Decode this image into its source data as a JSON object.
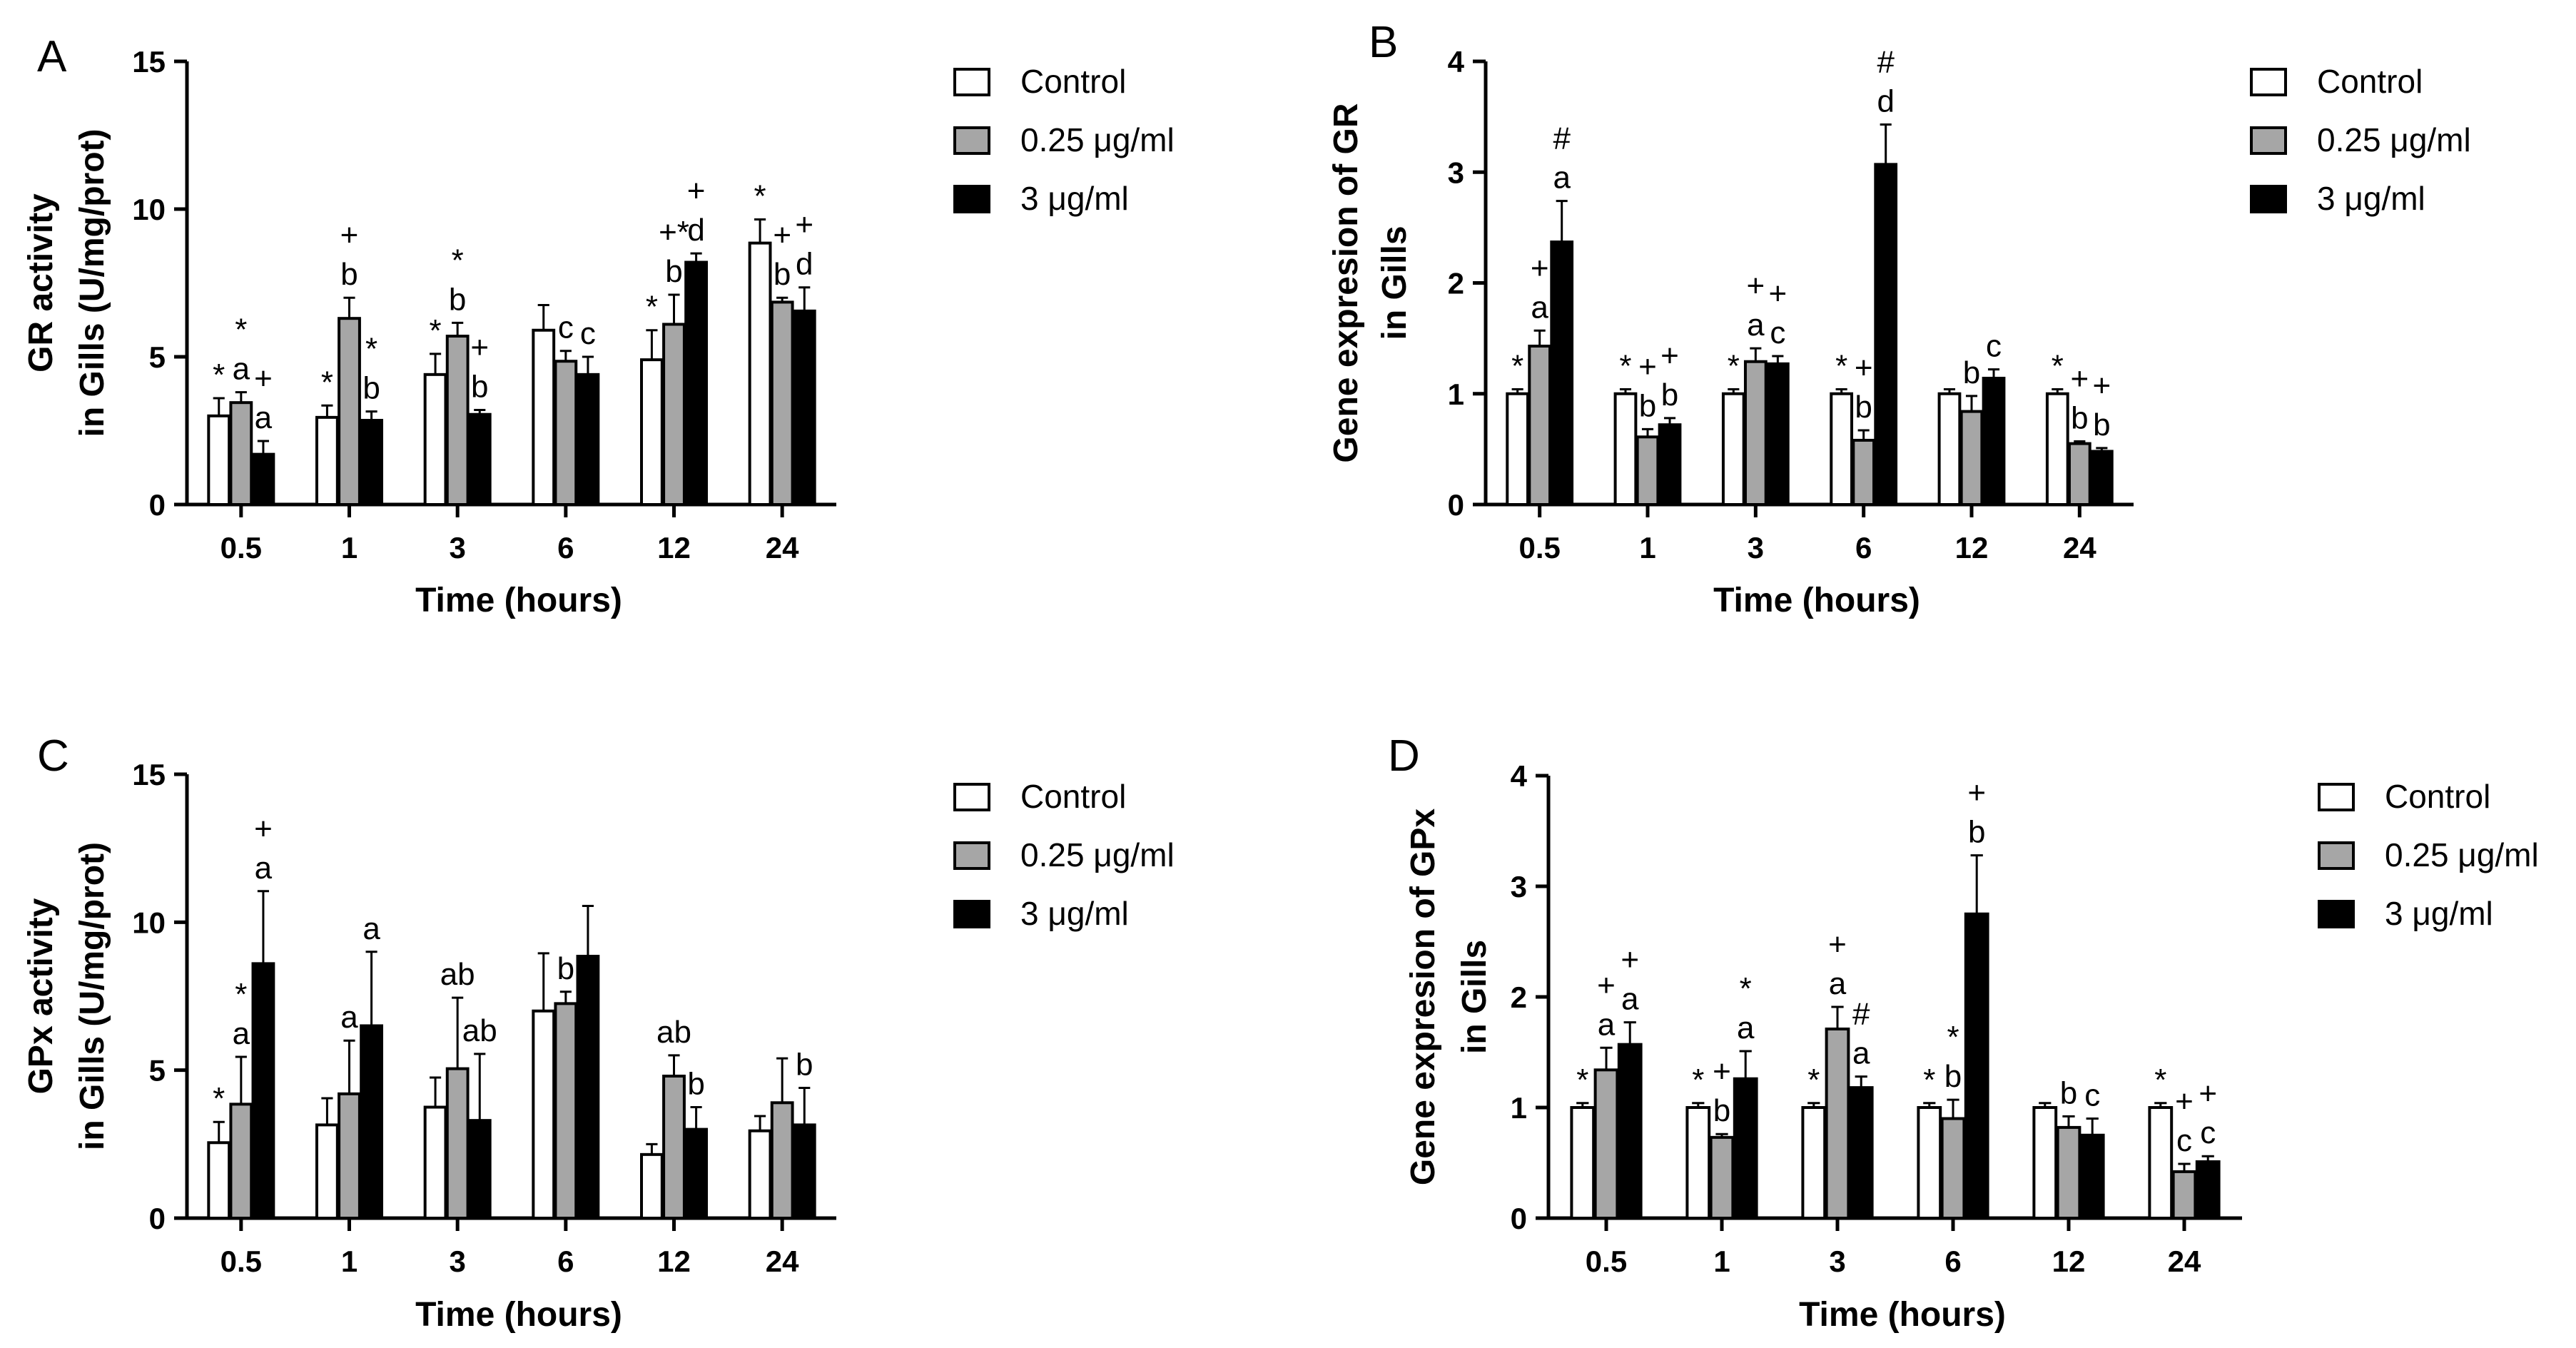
{
  "legend": {
    "series_names": [
      "Control",
      "0.25 μg/ml",
      "3 μg/ml"
    ],
    "series_colors": [
      "#ffffff",
      "#a6a6a6",
      "#000000"
    ]
  },
  "chart_data": [
    {
      "panel": "A",
      "type": "bar",
      "title": "",
      "xlabel": "Time (hours)",
      "ylabel_lines": [
        "GR activity",
        "in Gills (U/mg/prot)"
      ],
      "categories": [
        "0.5",
        "1",
        "3",
        "6",
        "12",
        "24"
      ],
      "ylim": [
        0,
        15
      ],
      "yticks": [
        0,
        5,
        10,
        15
      ],
      "series": [
        {
          "name": "Control",
          "values": [
            3.0,
            2.95,
            4.4,
            5.9,
            4.9,
            8.85
          ],
          "errors": [
            0.6,
            0.4,
            0.7,
            0.85,
            1.0,
            0.8
          ]
        },
        {
          "name": "0.25 μg/ml",
          "values": [
            3.45,
            6.3,
            5.7,
            4.85,
            6.1,
            6.85
          ],
          "errors": [
            0.35,
            0.7,
            0.45,
            0.35,
            1.0,
            0.15
          ]
        },
        {
          "name": "3 μg/ml",
          "values": [
            1.7,
            2.85,
            3.05,
            4.4,
            8.2,
            6.55
          ],
          "errors": [
            0.45,
            0.3,
            0.15,
            0.6,
            0.3,
            0.8
          ]
        }
      ],
      "annotations": [
        [
          [
            "*"
          ],
          [
            "*",
            "a"
          ],
          [
            "+",
            "a"
          ]
        ],
        [
          [
            "*"
          ],
          [
            "+",
            "b"
          ],
          [
            "*",
            "b"
          ]
        ],
        [
          [
            "*"
          ],
          [
            "*",
            "b"
          ],
          [
            "+",
            "b"
          ]
        ],
        [
          [],
          [
            "c"
          ],
          [
            "c"
          ]
        ],
        [
          [
            "*"
          ],
          [
            "+*",
            "b"
          ],
          [
            "+",
            "d"
          ]
        ],
        [
          [
            "*"
          ],
          [
            "+",
            "b"
          ],
          [
            "+",
            "d"
          ]
        ]
      ]
    },
    {
      "panel": "B",
      "type": "bar",
      "title": "",
      "xlabel": "Time (hours)",
      "ylabel_lines": [
        "Gene expresion of GR",
        "in Gills"
      ],
      "categories": [
        "0.5",
        "1",
        "3",
        "6",
        "12",
        "24"
      ],
      "ylim": [
        0,
        4
      ],
      "yticks": [
        0,
        1,
        2,
        3,
        4
      ],
      "series": [
        {
          "name": "Control",
          "values": [
            1.0,
            1.0,
            1.0,
            1.0,
            1.0,
            1.0
          ],
          "errors": [
            0.04,
            0.04,
            0.04,
            0.04,
            0.04,
            0.04
          ]
        },
        {
          "name": "0.25 μg/ml",
          "values": [
            1.43,
            0.61,
            1.29,
            0.58,
            0.84,
            0.55
          ],
          "errors": [
            0.14,
            0.07,
            0.12,
            0.09,
            0.14,
            0.02
          ]
        },
        {
          "name": "3 μg/ml",
          "values": [
            2.37,
            0.72,
            1.27,
            3.07,
            1.14,
            0.48
          ],
          "errors": [
            0.37,
            0.06,
            0.07,
            0.36,
            0.08,
            0.03
          ]
        }
      ],
      "annotations": [
        [
          [
            "*"
          ],
          [
            "+",
            "a"
          ],
          [
            "#",
            "a"
          ]
        ],
        [
          [
            "*"
          ],
          [
            "+",
            "b"
          ],
          [
            "+",
            "b"
          ]
        ],
        [
          [
            "*"
          ],
          [
            "+",
            "a"
          ],
          [
            "+",
            "c"
          ]
        ],
        [
          [
            "*"
          ],
          [
            "+",
            "b"
          ],
          [
            "#",
            "d"
          ]
        ],
        [
          [],
          [
            "b"
          ],
          [
            "c"
          ]
        ],
        [
          [
            "*"
          ],
          [
            "+",
            "b"
          ],
          [
            "+",
            "b"
          ]
        ]
      ]
    },
    {
      "panel": "C",
      "type": "bar",
      "title": "",
      "xlabel": "Time (hours)",
      "ylabel_lines": [
        "GPx activity",
        "in Gills (U/mg/prot)"
      ],
      "categories": [
        "0.5",
        "1",
        "3",
        "6",
        "12",
        "24"
      ],
      "ylim": [
        0,
        15
      ],
      "yticks": [
        0,
        5,
        10,
        15
      ],
      "series": [
        {
          "name": "Control",
          "values": [
            2.55,
            3.15,
            3.75,
            7.0,
            2.15,
            2.95
          ],
          "errors": [
            0.7,
            0.9,
            1.0,
            1.95,
            0.35,
            0.5
          ]
        },
        {
          "name": "0.25 μg/ml",
          "values": [
            3.85,
            4.2,
            5.05,
            7.25,
            4.8,
            3.9
          ],
          "errors": [
            1.6,
            1.8,
            2.4,
            0.4,
            0.7,
            1.5
          ]
        },
        {
          "name": "3 μg/ml",
          "values": [
            8.6,
            6.5,
            3.3,
            8.85,
            3.0,
            3.15
          ],
          "errors": [
            2.45,
            2.5,
            2.25,
            1.7,
            0.75,
            1.25
          ]
        }
      ],
      "annotations": [
        [
          [
            "*"
          ],
          [
            "*",
            "a"
          ],
          [
            "+",
            "a"
          ]
        ],
        [
          [],
          [
            "a"
          ],
          [
            "a"
          ]
        ],
        [
          [],
          [
            "ab"
          ],
          [
            "ab"
          ]
        ],
        [
          [],
          [
            "b"
          ],
          []
        ],
        [
          [],
          [
            "ab"
          ],
          [
            "b"
          ]
        ],
        [
          [],
          [],
          [
            "b"
          ]
        ]
      ]
    },
    {
      "panel": "D",
      "type": "bar",
      "title": "",
      "xlabel": "Time (hours)",
      "ylabel_lines": [
        "Gene expresion of GPx",
        "in Gills"
      ],
      "categories": [
        "0.5",
        "1",
        "3",
        "6",
        "12",
        "24"
      ],
      "ylim": [
        0,
        4
      ],
      "yticks": [
        0,
        1,
        2,
        3,
        4
      ],
      "series": [
        {
          "name": "Control",
          "values": [
            1.0,
            1.0,
            1.0,
            1.0,
            1.0,
            1.0
          ],
          "errors": [
            0.04,
            0.04,
            0.04,
            0.04,
            0.04,
            0.04
          ]
        },
        {
          "name": "0.25 μg/ml",
          "values": [
            1.34,
            0.73,
            1.71,
            0.9,
            0.82,
            0.42
          ],
          "errors": [
            0.2,
            0.03,
            0.2,
            0.17,
            0.1,
            0.07
          ]
        },
        {
          "name": "3 μg/ml",
          "values": [
            1.57,
            1.26,
            1.18,
            2.75,
            0.75,
            0.51
          ],
          "errors": [
            0.2,
            0.25,
            0.1,
            0.53,
            0.15,
            0.05
          ]
        }
      ],
      "annotations": [
        [
          [
            "*"
          ],
          [
            "+",
            "a"
          ],
          [
            "+",
            "a"
          ]
        ],
        [
          [
            "*"
          ],
          [
            "+",
            "b"
          ],
          [
            "*",
            "a"
          ]
        ],
        [
          [
            "*"
          ],
          [
            "+",
            "a"
          ],
          [
            "#",
            "a"
          ]
        ],
        [
          [
            "*"
          ],
          [
            "*",
            "b"
          ],
          [
            "+",
            "b"
          ]
        ],
        [
          [],
          [
            "b"
          ],
          [
            "c"
          ]
        ],
        [
          [
            "*"
          ],
          [
            "+",
            "c"
          ],
          [
            "+",
            "c"
          ]
        ]
      ]
    }
  ]
}
